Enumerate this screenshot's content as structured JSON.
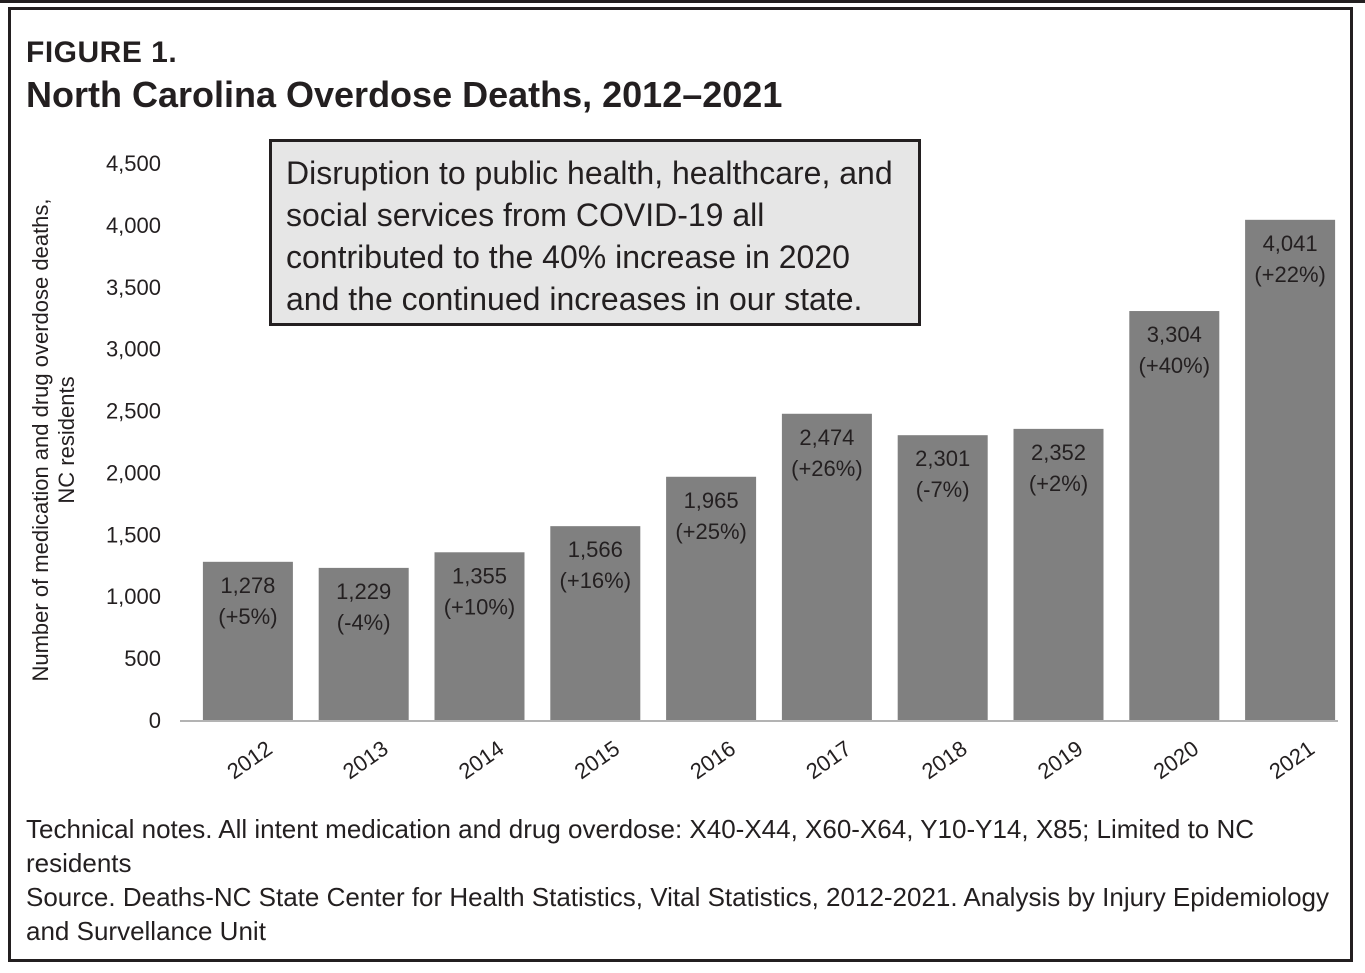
{
  "figure": {
    "label": "FIGURE 1.",
    "title": "North Carolina Overdose Deaths, 2012–2021"
  },
  "callout": {
    "text": "Disruption to public health, healthcare, and social services from COVID-19 all contributed to the 40% increase in 2020 and the continued increases in our state."
  },
  "notes": {
    "technical": "Technical notes. All intent medication and drug overdose: X40-X44, X60-X64, Y10-Y14, X85; Limited to NC residents",
    "source": "Source. Deaths-NC State Center for Health Statistics, Vital Statistics, 2012-2021. Analysis by Injury Epidemiology and Survellance Unit"
  },
  "chart_data": {
    "type": "bar",
    "title": "North Carolina Overdose Deaths, 2012–2021",
    "xlabel": "",
    "ylabel": "Number of medication and drug overdose deaths, NC residents",
    "ylabel_lines": [
      "Number of medication and drug overdose deaths,",
      "NC residents"
    ],
    "ylim": [
      0,
      4500
    ],
    "yticks": [
      0,
      500,
      1000,
      1500,
      2000,
      2500,
      3000,
      3500,
      4000,
      4500
    ],
    "ytick_labels": [
      "0",
      "500",
      "1,000",
      "1,500",
      "2,000",
      "2,500",
      "3,000",
      "3,500",
      "4,000",
      "4,500"
    ],
    "categories": [
      "2012",
      "2013",
      "2014",
      "2015",
      "2016",
      "2017",
      "2018",
      "2019",
      "2020",
      "2021"
    ],
    "values": [
      1278,
      1229,
      1355,
      1566,
      1965,
      2474,
      2301,
      2352,
      3304,
      4041
    ],
    "value_labels": [
      "1,278",
      "1,229",
      "1,355",
      "1,566",
      "1,965",
      "2,474",
      "2,301",
      "2,352",
      "3,304",
      "4,041"
    ],
    "change_labels": [
      "(+5%)",
      "(-4%)",
      "(+10%)",
      "(+16%)",
      "(+25%)",
      "(+26%)",
      "(-7%)",
      "(+2%)",
      "(+40%)",
      "(+22%)"
    ],
    "grid": false,
    "legend": "none",
    "bar_color": "#808080",
    "label_color": "#231f20"
  }
}
